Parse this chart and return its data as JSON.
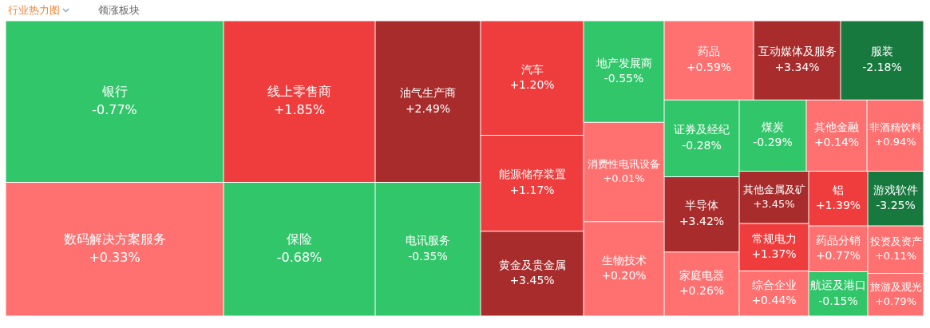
{
  "chart_data": {
    "type": "other",
    "title": "行业热力图",
    "subtitle": "领涨板块",
    "categories": [
      "银行",
      "数码解决方案服务",
      "线上零售商",
      "保险",
      "油气生产商",
      "电讯服务",
      "汽车",
      "能源储存装置",
      "黄金及贵金属",
      "地产发展商",
      "消费性电讯设备",
      "生物技术",
      "药品",
      "互动媒体及服务",
      "服装",
      "证券及经纪",
      "半导体",
      "家庭电器",
      "煤炭",
      "其他金融",
      "非酒精饮料",
      "其他金属及矿",
      "常规电力",
      "综合企业",
      "铝",
      "药品分销",
      "航运及港口",
      "游戏软件",
      "投资及资产",
      "旅游及观光"
    ],
    "values": [
      -0.77,
      0.33,
      1.85,
      -0.68,
      2.49,
      -0.35,
      1.2,
      1.17,
      3.45,
      -0.55,
      0.01,
      0.2,
      0.59,
      3.34,
      -2.18,
      -0.28,
      3.42,
      0.26,
      -0.29,
      0.14,
      0.94,
      3.45,
      1.37,
      0.44,
      1.39,
      0.77,
      -0.15,
      -3.25,
      0.11,
      0.79
    ],
    "value_labels": [
      "-0.77%",
      "+0.33%",
      "+1.85%",
      "-0.68%",
      "+2.49%",
      "-0.35%",
      "+1.20%",
      "+1.17%",
      "+3.45%",
      "-0.55%",
      "+0.01%",
      "+0.20%",
      "+0.59%",
      "+3.34%",
      "-2.18%",
      "-0.28%",
      "+3.42%",
      "+0.26%",
      "-0.29%",
      "+0.14%",
      "+0.94%",
      "+3.45%",
      "+1.37%",
      "+0.44%",
      "+1.39%",
      "+0.77%",
      "-0.15%",
      "-3.25%",
      "+0.11%",
      "+0.79%"
    ],
    "colors": [
      "#32c66a",
      "#ff7171",
      "#ef3d3d",
      "#32c66a",
      "#a82c2c",
      "#32c66a",
      "#ef3d3d",
      "#ef3d3d",
      "#a82c2c",
      "#32c66a",
      "#ff7171",
      "#ff7171",
      "#ff7171",
      "#a82c2c",
      "#18793f",
      "#32c66a",
      "#a82c2c",
      "#ff7171",
      "#32c66a",
      "#ff7171",
      "#ff7171",
      "#a82c2c",
      "#ef3d3d",
      "#ff7171",
      "#ef3d3d",
      "#ff7171",
      "#32c66a",
      "#18793f",
      "#ff7171",
      "#ff7171"
    ]
  }
}
